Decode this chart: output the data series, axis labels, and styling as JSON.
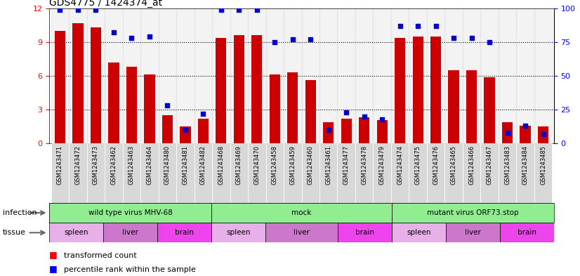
{
  "title": "GDS4775 / 1424374_at",
  "samples": [
    "GSM1243471",
    "GSM1243472",
    "GSM1243473",
    "GSM1243462",
    "GSM1243463",
    "GSM1243464",
    "GSM1243480",
    "GSM1243481",
    "GSM1243482",
    "GSM1243468",
    "GSM1243469",
    "GSM1243470",
    "GSM1243458",
    "GSM1243459",
    "GSM1243460",
    "GSM1243461",
    "GSM1243477",
    "GSM1243478",
    "GSM1243479",
    "GSM1243474",
    "GSM1243475",
    "GSM1243476",
    "GSM1243465",
    "GSM1243466",
    "GSM1243467",
    "GSM1243483",
    "GSM1243484",
    "GSM1243485"
  ],
  "transformed_count": [
    10.0,
    10.7,
    10.3,
    7.2,
    6.8,
    6.1,
    2.5,
    1.5,
    2.2,
    9.4,
    9.6,
    9.6,
    6.1,
    6.3,
    5.6,
    1.9,
    2.2,
    2.3,
    2.1,
    9.4,
    9.5,
    9.5,
    6.5,
    6.5,
    5.9,
    1.9,
    1.6,
    1.5
  ],
  "percentile_rank": [
    99,
    99,
    99,
    82,
    78,
    79,
    28,
    10,
    22,
    99,
    99,
    99,
    75,
    77,
    77,
    10,
    23,
    20,
    18,
    87,
    87,
    87,
    78,
    78,
    75,
    8,
    13,
    7
  ],
  "bar_color": "#cc0000",
  "dot_color": "#0000cc",
  "left_ylim": [
    0,
    12
  ],
  "right_ylim": [
    0,
    100
  ],
  "left_yticks": [
    0,
    3,
    6,
    9,
    12
  ],
  "right_yticks": [
    0,
    25,
    50,
    75,
    100
  ],
  "infection_groups": [
    {
      "label": "wild type virus MHV-68",
      "start": 0,
      "end": 9,
      "color": "#90ee90"
    },
    {
      "label": "mock",
      "start": 9,
      "end": 19,
      "color": "#90ee90"
    },
    {
      "label": "mutant virus ORF73.stop",
      "start": 19,
      "end": 28,
      "color": "#90ee90"
    }
  ],
  "tissue_groups": [
    {
      "label": "spleen",
      "start": 0,
      "end": 3,
      "color": "#e8b8e8"
    },
    {
      "label": "liver",
      "start": 3,
      "end": 6,
      "color": "#dd88dd"
    },
    {
      "label": "brain",
      "start": 6,
      "end": 9,
      "color": "#ee55ee"
    },
    {
      "label": "spleen",
      "start": 9,
      "end": 12,
      "color": "#e8b8e8"
    },
    {
      "label": "liver",
      "start": 12,
      "end": 16,
      "color": "#dd88dd"
    },
    {
      "label": "brain",
      "start": 16,
      "end": 19,
      "color": "#ee55ee"
    },
    {
      "label": "spleen",
      "start": 19,
      "end": 22,
      "color": "#e8b8e8"
    },
    {
      "label": "liver",
      "start": 22,
      "end": 25,
      "color": "#dd88dd"
    },
    {
      "label": "brain",
      "start": 25,
      "end": 28,
      "color": "#ee55ee"
    }
  ],
  "infection_label": "infection",
  "tissue_label": "tissue",
  "bar_width": 0.6,
  "plot_bg": "#ffffff",
  "xtick_bg": "#d8d8d8",
  "infection_border": "#000000",
  "tissue_spleen_color": "#e8b8e8",
  "tissue_liver_color": "#cc77cc",
  "tissue_brain_color": "#ee44ee"
}
